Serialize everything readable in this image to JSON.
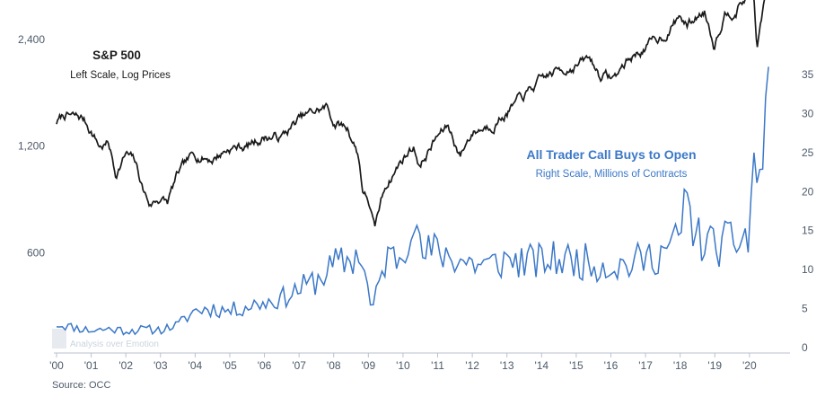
{
  "chart_data": {
    "type": "line",
    "x_axis": {
      "tick_labels": [
        "'00",
        "'01",
        "'02",
        "'03",
        "'04",
        "'05",
        "'06",
        "'07",
        "'08",
        "'09",
        "'10",
        "'11",
        "'12",
        "'13",
        "'14",
        "'15",
        "'16",
        "'17",
        "'18",
        "'19",
        "'20"
      ],
      "range": [
        2000.0,
        2020.6
      ]
    },
    "y_left": {
      "scale": "log",
      "range": [
        300,
        3100
      ],
      "ticks": [
        600,
        1200,
        2400
      ],
      "tick_labels": [
        "600",
        "1,200",
        "2,400"
      ]
    },
    "y_right": {
      "scale": "linear",
      "range": [
        0,
        37
      ],
      "ticks": [
        0,
        5,
        10,
        15,
        20,
        25,
        30,
        35
      ],
      "tick_labels": [
        "0",
        "5",
        "10",
        "15",
        "20",
        "25",
        "30",
        "35"
      ]
    },
    "series": [
      {
        "name": "S&P 500",
        "axis": "left",
        "color": "#1a1a1a",
        "points": [
          [
            2000.0,
            1400
          ],
          [
            2000.25,
            1470
          ],
          [
            2000.5,
            1440
          ],
          [
            2000.75,
            1430
          ],
          [
            2001.0,
            1330
          ],
          [
            2001.25,
            1200
          ],
          [
            2001.5,
            1220
          ],
          [
            2001.7,
            1000
          ],
          [
            2002.0,
            1140
          ],
          [
            2002.25,
            1080
          ],
          [
            2002.5,
            900
          ],
          [
            2002.7,
            820
          ],
          [
            2003.0,
            860
          ],
          [
            2003.2,
            830
          ],
          [
            2003.5,
            990
          ],
          [
            2004.0,
            1130
          ],
          [
            2004.5,
            1110
          ],
          [
            2005.0,
            1190
          ],
          [
            2005.5,
            1200
          ],
          [
            2006.0,
            1280
          ],
          [
            2006.5,
            1270
          ],
          [
            2007.0,
            1420
          ],
          [
            2007.5,
            1500
          ],
          [
            2007.8,
            1540
          ],
          [
            2008.0,
            1400
          ],
          [
            2008.4,
            1350
          ],
          [
            2008.7,
            1150
          ],
          [
            2008.85,
            890
          ],
          [
            2009.0,
            850
          ],
          [
            2009.18,
            690
          ],
          [
            2009.5,
            930
          ],
          [
            2010.0,
            1110
          ],
          [
            2010.3,
            1200
          ],
          [
            2010.5,
            1060
          ],
          [
            2011.0,
            1280
          ],
          [
            2011.3,
            1360
          ],
          [
            2011.65,
            1130
          ],
          [
            2012.0,
            1320
          ],
          [
            2012.5,
            1380
          ],
          [
            2013.0,
            1500
          ],
          [
            2013.5,
            1650
          ],
          [
            2014.0,
            1830
          ],
          [
            2014.5,
            1960
          ],
          [
            2015.0,
            2050
          ],
          [
            2015.4,
            2110
          ],
          [
            2015.65,
            1920
          ],
          [
            2016.1,
            1870
          ],
          [
            2016.5,
            2100
          ],
          [
            2017.0,
            2280
          ],
          [
            2017.5,
            2450
          ],
          [
            2018.0,
            2800
          ],
          [
            2018.2,
            2620
          ],
          [
            2018.7,
            2900
          ],
          [
            2018.98,
            2350
          ],
          [
            2019.3,
            2900
          ],
          [
            2019.6,
            2950
          ],
          [
            2020.0,
            3230
          ],
          [
            2020.1,
            3380
          ],
          [
            2020.22,
            2240
          ],
          [
            2020.4,
            2950
          ],
          [
            2020.55,
            3250
          ]
        ]
      },
      {
        "name": "All Trader Call Buys to Open",
        "axis": "right",
        "color": "#3b78c8",
        "points": [
          [
            2000.0,
            3.0
          ],
          [
            2000.5,
            2.6
          ],
          [
            2001.0,
            2.2
          ],
          [
            2001.5,
            2.4
          ],
          [
            2002.0,
            2.2
          ],
          [
            2002.5,
            2.3
          ],
          [
            2003.0,
            2.3
          ],
          [
            2003.5,
            2.9
          ],
          [
            2004.0,
            4.8
          ],
          [
            2004.5,
            5.0
          ],
          [
            2005.0,
            4.7
          ],
          [
            2005.5,
            5.3
          ],
          [
            2006.0,
            5.8
          ],
          [
            2006.5,
            6.3
          ],
          [
            2007.0,
            7.5
          ],
          [
            2007.5,
            8.6
          ],
          [
            2008.0,
            10.5
          ],
          [
            2008.5,
            11.3
          ],
          [
            2008.8,
            12.0
          ],
          [
            2009.1,
            4.5
          ],
          [
            2009.5,
            11.4
          ],
          [
            2010.0,
            12.0
          ],
          [
            2010.3,
            18.5
          ],
          [
            2010.5,
            11.8
          ],
          [
            2011.0,
            12.5
          ],
          [
            2011.5,
            11.5
          ],
          [
            2012.0,
            10.8
          ],
          [
            2012.5,
            10.5
          ],
          [
            2013.0,
            11.3
          ],
          [
            2013.5,
            11.0
          ],
          [
            2014.0,
            11.0
          ],
          [
            2014.5,
            11.3
          ],
          [
            2015.0,
            11.2
          ],
          [
            2015.5,
            10.8
          ],
          [
            2016.0,
            10.5
          ],
          [
            2016.5,
            10.6
          ],
          [
            2017.0,
            11.4
          ],
          [
            2017.5,
            12.3
          ],
          [
            2018.0,
            13.8
          ],
          [
            2018.1,
            19.0
          ],
          [
            2018.5,
            14.0
          ],
          [
            2019.0,
            13.0
          ],
          [
            2019.5,
            13.5
          ],
          [
            2019.9,
            14.3
          ],
          [
            2020.0,
            12.0
          ],
          [
            2020.1,
            28.5
          ],
          [
            2020.2,
            18.5
          ],
          [
            2020.4,
            26.0
          ],
          [
            2020.55,
            36.0
          ]
        ]
      }
    ],
    "annotations": {
      "sp_title": "S&P 500",
      "sp_subtitle": "Left Scale, Log Prices",
      "calls_title": "All Trader Call Buys to Open",
      "calls_subtitle": "Right Scale, Millions of Contracts",
      "source": "Source: OCC",
      "watermark": "Analysis over Emotion"
    },
    "grid": false
  }
}
